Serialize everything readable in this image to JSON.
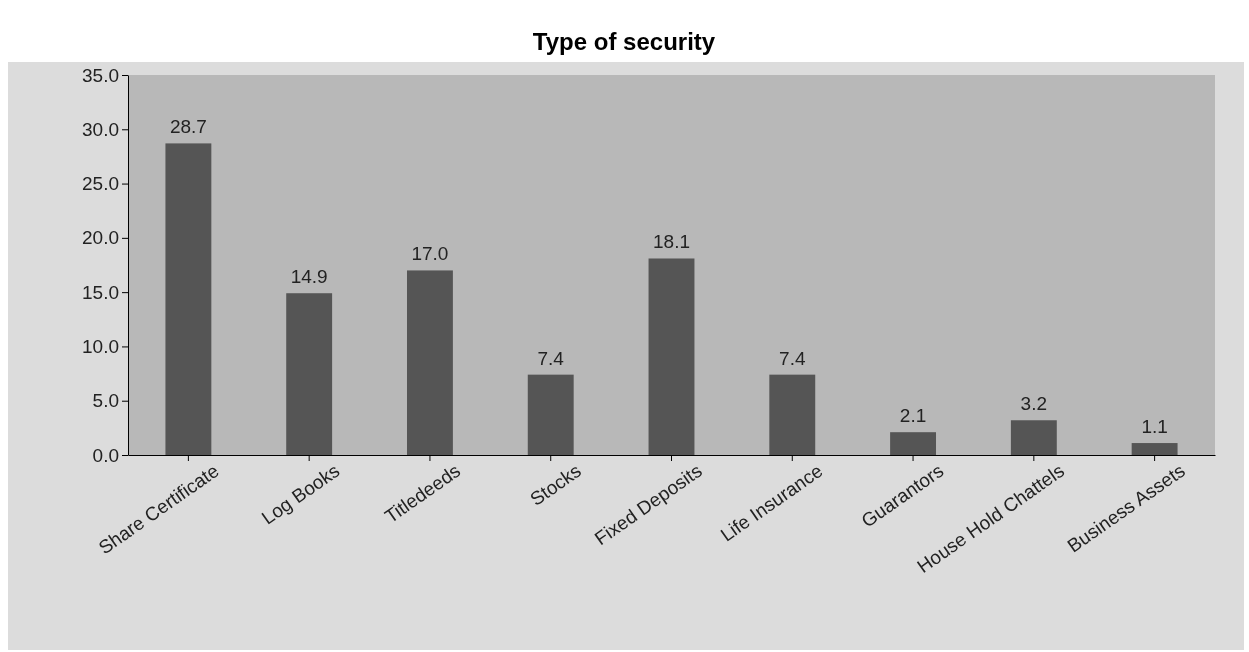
{
  "chart_data": {
    "type": "bar",
    "title": "Type of security",
    "categories": [
      "Share Certificate",
      "Log Books",
      "Titledeeds",
      "Stocks",
      "Fixed Deposits",
      "Life Insurance",
      "Guarantors",
      "House Hold Chattels",
      "Business Assets"
    ],
    "values": [
      28.7,
      14.9,
      17.0,
      7.4,
      18.1,
      7.4,
      2.1,
      3.2,
      1.1
    ],
    "value_labels": [
      "28.7",
      "14.9",
      "17.0",
      "7.4",
      "18.1",
      "7.4",
      "2.1",
      "3.2",
      "1.1"
    ],
    "color": "#555555",
    "ylim": [
      0,
      35
    ],
    "yticks": [
      {
        "value": 0,
        "label": "0.0"
      },
      {
        "value": 5,
        "label": "5.0"
      },
      {
        "value": 10,
        "label": "10.0"
      },
      {
        "value": 15,
        "label": "15.0"
      },
      {
        "value": 20,
        "label": "20.0"
      },
      {
        "value": 25,
        "label": "25.0"
      },
      {
        "value": 30,
        "label": "30.0"
      },
      {
        "value": 35,
        "label": "35.0"
      }
    ],
    "grid": false
  }
}
